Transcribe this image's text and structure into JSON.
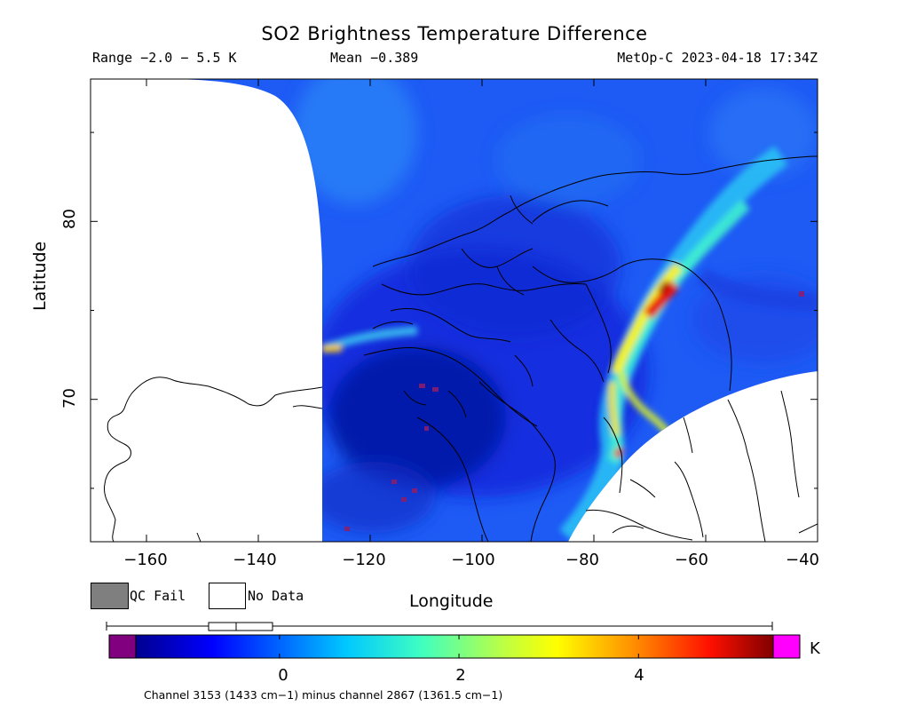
{
  "header": {
    "title": "SO2 Brightness Temperature Difference",
    "range": "Range −2.0 − 5.5 K",
    "mean": "Mean −0.389",
    "satellite": "MetOp-C 2023-04-18 17:34Z"
  },
  "axes": {
    "xlabel": "Longitude",
    "ylabel": "Latitude",
    "xticks": [
      "−160",
      "−140",
      "−120",
      "−100",
      "−80",
      "−60",
      "−40"
    ],
    "yticks": [
      "80",
      "70"
    ],
    "xlim": [
      -170,
      -40
    ],
    "ylim": [
      62,
      88
    ]
  },
  "legend": {
    "qc_fail": "QC Fail",
    "no_data": "No Data",
    "qc_color": "#7f7f7f"
  },
  "colorbar": {
    "unit": "K",
    "ticks": [
      "0",
      "2",
      "4"
    ],
    "tick_values": [
      0,
      2,
      4
    ],
    "range": [
      -1.6,
      5.5
    ],
    "under_color": "#800080",
    "over_color": "#ff00ff"
  },
  "footer": {
    "channel": "Channel 3153 (1433 cm−1) minus channel 2867 (1361.5 cm−1)"
  },
  "chart_data": {
    "type": "heatmap",
    "title": "SO2 Brightness Temperature Difference",
    "xlabel": "Longitude",
    "ylabel": "Latitude",
    "xlim": [
      -170,
      -40
    ],
    "ylim": [
      62,
      88
    ],
    "colorbar_range": [
      -1.6,
      5.5
    ],
    "band_path": [
      {
        "lon": -65,
        "lat": 76.0,
        "value": 5.0
      },
      {
        "lon": -68,
        "lat": 75.0,
        "value": 4.6
      },
      {
        "lon": -72,
        "lat": 73.0,
        "value": 3.5
      },
      {
        "lon": -75,
        "lat": 70.8,
        "value": 3.0
      },
      {
        "lon": -73,
        "lat": 67.7,
        "value": 3.8
      },
      {
        "lon": -127,
        "lat": 72.5,
        "value": 2.8
      }
    ]
  }
}
